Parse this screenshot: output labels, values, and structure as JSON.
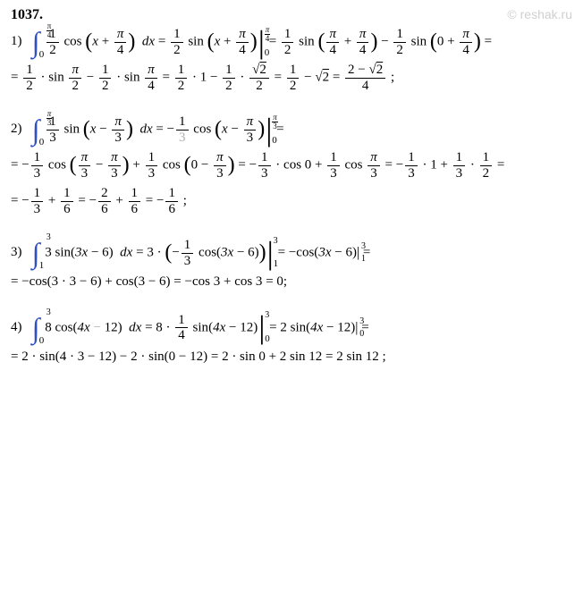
{
  "watermark": "© reshak.ru",
  "header": "1037.",
  "colors": {
    "integral": "#3050c0",
    "faded": "#b0b0b0",
    "text": "#000000",
    "watermark": "#d0d0d0",
    "background": "#ffffff"
  },
  "fonts": {
    "body_family": "Times New Roman",
    "body_size": 15,
    "header_size": 16,
    "watermark_family": "Arial"
  },
  "problems": {
    "p1": {
      "label": "1)",
      "int_lower": "0",
      "int_upper_num": "π",
      "int_upper_den": "4",
      "integrand_coef_num": "1",
      "integrand_coef_den": "2",
      "fn": "cos",
      "arg_x": "x",
      "arg_shift_num": "π",
      "arg_shift_den": "4",
      "dx": "dx",
      "antider_coef_num": "1",
      "antider_coef_den": "2",
      "antider_fn": "sin",
      "eval_a_num": "π",
      "eval_a_den": "4",
      "eval_b_num": "π",
      "eval_b_den": "4",
      "eval_c": "0",
      "line2_t1_num": "1",
      "line2_t1_den": "2",
      "line2_sin1_num": "π",
      "line2_sin1_den": "2",
      "line2_t2_num": "1",
      "line2_t2_den": "2",
      "line2_sin2_num": "π",
      "line2_sin2_den": "4",
      "line2_v1": "1",
      "line2_rt_num": "√2",
      "line2_rt_den": "2",
      "line2_r1_num": "1",
      "line2_r1_den": "2",
      "line2_r2": "√2",
      "line2_final_num": "2 − √2",
      "line2_final_den": "4"
    },
    "p2": {
      "label": "2)",
      "int_lower": "0",
      "int_upper_num": "π",
      "int_upper_den": "3",
      "coef_num": "1",
      "coef_den": "3",
      "fn": "sin",
      "arg_x": "x",
      "shift_num": "π",
      "shift_den": "3",
      "dx": "dx",
      "antider_fn": "cos",
      "l2_a_num": "π",
      "l2_a_den": "3",
      "l2_cos0": "cos 0",
      "l2_cospi3": "cos",
      "l2_v1": "1",
      "l2_v2_num": "1",
      "l2_v2_den": "2",
      "l3_a_num": "1",
      "l3_a_den": "3",
      "l3_b_num": "1",
      "l3_b_den": "6",
      "l3_c_num": "2",
      "l3_c_den": "6",
      "l3_d_num": "1",
      "l3_d_den": "6",
      "l3_e_num": "1",
      "l3_e_den": "6"
    },
    "p3": {
      "label": "3)",
      "int_lower": "1",
      "int_upper": "3",
      "coef": "3",
      "fn": "sin",
      "arg": "3x − 6",
      "dx": "dx",
      "step_coef": "3",
      "step_frac_num": "1",
      "step_frac_den": "3",
      "step_fn": "cos",
      "ev_up": "3",
      "ev_lo": "1",
      "l2_a": "cos(3 · 3 − 6)",
      "l2_b": "cos(3 − 6)",
      "l2_c": "cos 3",
      "l2_d": "cos 3",
      "l2_res": "0"
    },
    "p4": {
      "label": "4)",
      "int_lower": "0",
      "int_upper": "3",
      "coef": "8",
      "fn": "cos",
      "arg": "4x − 12",
      "dx": "dx",
      "step_coef": "8",
      "step_frac_num": "1",
      "step_frac_den": "4",
      "step_fn": "sin",
      "ev_up": "3",
      "ev_lo": "0",
      "res_coef": "2",
      "l2_a": "2 · sin(4 · 3 − 12)",
      "l2_b": "2 · sin(0 − 12)",
      "l2_c": "2 · sin 0",
      "l2_d": "2 sin 12",
      "l2_res": "2 sin 12"
    }
  }
}
